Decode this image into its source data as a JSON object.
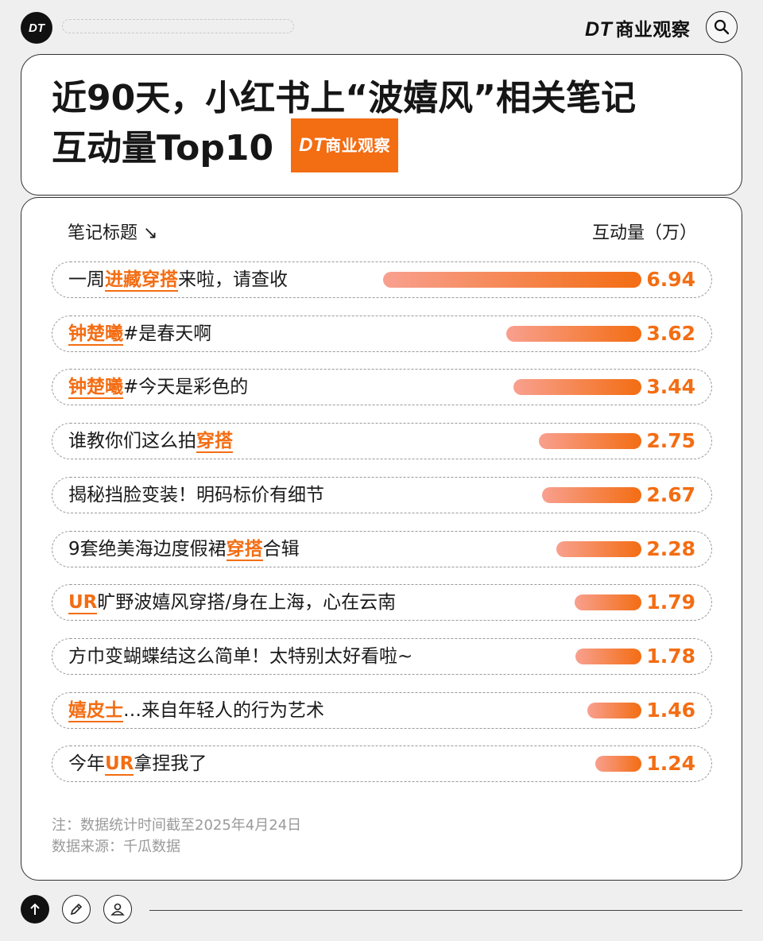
{
  "header": {
    "logo_text": "DT",
    "brand_dt": "DT",
    "brand_name": "商业观察",
    "search_icon": "search-icon"
  },
  "card": {
    "title_line1": "近90天，小红书上“波嬉风”相关笔记",
    "title_line2": "互动量Top10",
    "tag_dt": "DT",
    "tag_text": "商业观察"
  },
  "chart_data": {
    "type": "bar",
    "orientation": "horizontal",
    "xlabel": "笔记标题 ↘",
    "ylabel": "互动量（万）",
    "categories": [
      "一周进藏穿搭来啦，请查收",
      "钟楚曦#是春天啊",
      "钟楚曦#今天是彩色的",
      "谁教你们这么拍穿搭",
      "揭秘挡脸变装！明码标价有细节",
      "9套绝美海边度假裙穿搭合辑",
      "UR旷野波嬉风穿搭/身在上海，心在云南",
      "方巾变蝴蝶结这么简单！太特别太好看啦~",
      "嬉皮士…来自年轻人的行为艺术",
      "今年UR拿捏我了"
    ],
    "values": [
      6.94,
      3.62,
      3.44,
      2.75,
      2.67,
      2.28,
      1.79,
      1.78,
      1.46,
      1.24
    ],
    "value_labels": [
      "6.94",
      "3.62",
      "3.44",
      "2.75",
      "2.67",
      "2.28",
      "1.79",
      "1.78",
      "1.46",
      "1.24"
    ],
    "segments": [
      [
        {
          "t": "一周"
        },
        {
          "t": "进藏穿搭",
          "h": true
        },
        {
          "t": "来啦，请查收"
        }
      ],
      [
        {
          "t": "钟楚曦",
          "h": true
        },
        {
          "t": "#是春天啊"
        }
      ],
      [
        {
          "t": "钟楚曦",
          "h": true
        },
        {
          "t": "#今天是彩色的"
        }
      ],
      [
        {
          "t": "谁教你们这么拍"
        },
        {
          "t": "穿搭",
          "h": true
        }
      ],
      [
        {
          "t": "揭秘挡脸变装！明码标价有细节"
        }
      ],
      [
        {
          "t": "9套绝美海边度假裙"
        },
        {
          "t": "穿搭",
          "h": true
        },
        {
          "t": "合辑"
        }
      ],
      [
        {
          "t": "UR",
          "h": true
        },
        {
          "t": "旷野波嬉风穿搭/身在上海，心在云南"
        }
      ],
      [
        {
          "t": "方巾变蝴蝶结这么简单！太特别太好看啦~"
        }
      ],
      [
        {
          "t": "嬉皮士",
          "h": true
        },
        {
          "t": "…来自年轻人的行为艺术"
        }
      ],
      [
        {
          "t": "今年"
        },
        {
          "t": "UR",
          "h": true
        },
        {
          "t": "拿捏我了"
        }
      ]
    ],
    "xlim": [
      0,
      6.94
    ]
  },
  "colors": {
    "accent": "#f36d13",
    "bar_start": "#f8a08f",
    "bar_end": "#f36d13"
  },
  "footer": {
    "note": "注：数据统计时间截至2025年4月24日",
    "source": "数据来源：千瓜数据"
  },
  "bottom_icons": [
    "arrow-up-icon",
    "pencil-icon",
    "user-icon"
  ]
}
